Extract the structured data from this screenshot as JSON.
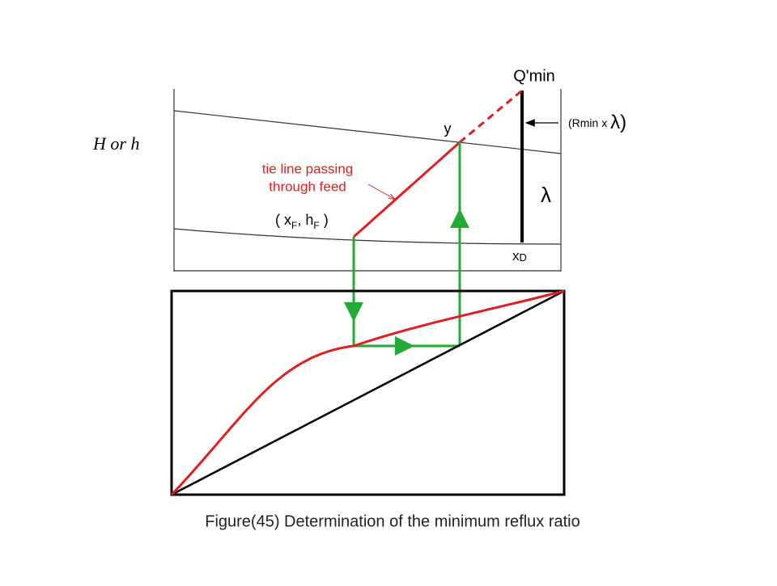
{
  "labels": {
    "q_min": "Q'min",
    "y": "y",
    "rmin_lambda": [
      "(Rmin x ",
      "λ)"
    ],
    "h_axis": "H or h",
    "tie_line": [
      "tie line passing",
      "through feed"
    ],
    "feed_point": [
      "( x",
      "F",
      ", h",
      "F",
      " )"
    ],
    "lambda": "λ",
    "xd": [
      "x",
      "D"
    ]
  },
  "caption": "Figure(45) Determination of  the  minimum  reflux ratio"
}
